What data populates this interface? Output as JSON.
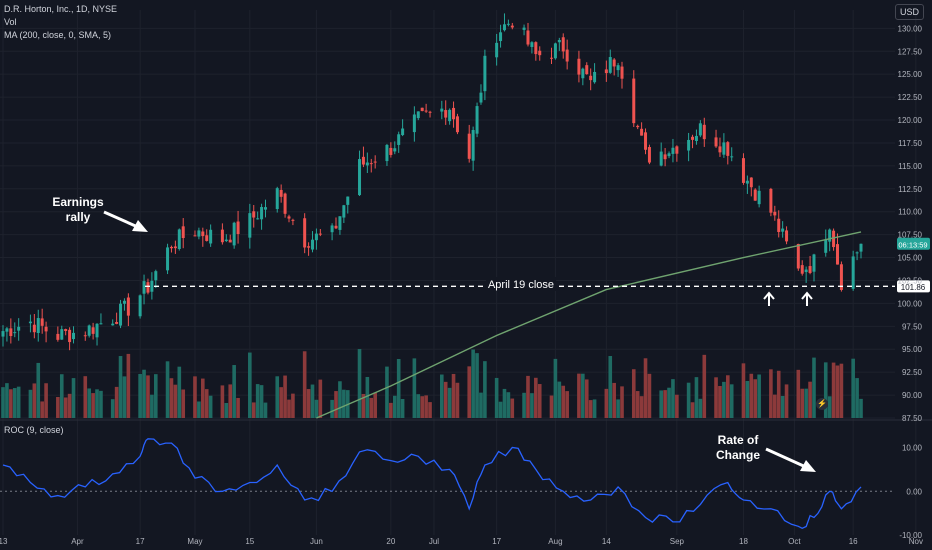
{
  "header": {
    "symbol_line": "D.R. Horton, Inc., 1D, NYSE",
    "volume_label": "Vol",
    "ma_label": "MA (200, close, 0, SMA, 5)",
    "roc_label": "ROC (9, close)",
    "currency": "USD"
  },
  "colors": {
    "background": "#131722",
    "up": "#26a69a",
    "down": "#ef5350",
    "vol_up": "#1f6b63",
    "vol_down": "#8c3a3b",
    "ma": "#6fa36f",
    "roc": "#2962ff",
    "grid": "#1e222d",
    "text": "#d1d4dc"
  },
  "chart_data": [
    {
      "type": "candlestick",
      "title": "D.R. Horton, Inc., 1D, NYSE",
      "ylim": [
        87.5,
        132
      ],
      "y_ticks": [
        "87.50",
        "90.00",
        "92.50",
        "95.00",
        "97.50",
        "100.00",
        "102.50",
        "105.00",
        "107.50",
        "110.00",
        "112.50",
        "115.00",
        "117.50",
        "120.00",
        "122.50",
        "125.00",
        "127.50",
        "130.00"
      ],
      "x_ticks": [
        "13",
        "Apr",
        "17",
        "May",
        "15",
        "Jun",
        "20",
        "Jul",
        "17",
        "Aug",
        "14",
        "Sep",
        "18",
        "Oct",
        "16",
        "Nov"
      ],
      "price_levels": [
        {
          "label": "April 19 close",
          "value": 101.86,
          "tag": "101.86"
        },
        {
          "label": "last",
          "value": 106.5,
          "tag": "06:13:59"
        }
      ],
      "close_path": [
        {
          "x": "Mar 13",
          "close": 97.0
        },
        {
          "x": "Mar 20",
          "close": 98.0
        },
        {
          "x": "Mar 27",
          "close": 96.5
        },
        {
          "x": "Apr 3",
          "close": 97.0
        },
        {
          "x": "Apr 10",
          "close": 98.5
        },
        {
          "x": "Apr 14",
          "close": 99.5
        },
        {
          "x": "Apr 17",
          "close": 101.0
        },
        {
          "x": "Apr 19",
          "close": 101.86
        },
        {
          "x": "Apr 25",
          "close": 106.5
        },
        {
          "x": "May 1",
          "close": 108.0
        },
        {
          "x": "May 8",
          "close": 107.0
        },
        {
          "x": "May 15",
          "close": 109.0
        },
        {
          "x": "May 22",
          "close": 112.0
        },
        {
          "x": "May 29",
          "close": 107.0
        },
        {
          "x": "Jun 5",
          "close": 107.5
        },
        {
          "x": "Jun 12",
          "close": 115.0
        },
        {
          "x": "Jun 20",
          "close": 117.0
        },
        {
          "x": "Jun 27",
          "close": 120.0
        },
        {
          "x": "Jul 5",
          "close": 121.5
        },
        {
          "x": "Jul 10",
          "close": 116.0
        },
        {
          "x": "Jul 14",
          "close": 126.0
        },
        {
          "x": "Jul 17",
          "close": 129.5
        },
        {
          "x": "Jul 21",
          "close": 131.0
        },
        {
          "x": "Jul 27",
          "close": 127.0
        },
        {
          "x": "Aug 3",
          "close": 128.0
        },
        {
          "x": "Aug 10",
          "close": 124.0
        },
        {
          "x": "Aug 17",
          "close": 127.0
        },
        {
          "x": "Aug 24",
          "close": 116.0
        },
        {
          "x": "Aug 31",
          "close": 117.0
        },
        {
          "x": "Sep 7",
          "close": 119.0
        },
        {
          "x": "Sep 14",
          "close": 117.0
        },
        {
          "x": "Sep 18",
          "close": 114.0
        },
        {
          "x": "Sep 25",
          "close": 110.0
        },
        {
          "x": "Oct 2",
          "close": 103.5
        },
        {
          "x": "Oct 6",
          "close": 104.5
        },
        {
          "x": "Oct 10",
          "close": 109.0
        },
        {
          "x": "Oct 13",
          "close": 102.5
        },
        {
          "x": "Oct 18",
          "close": 106.5
        }
      ],
      "series": [
        {
          "name": "MA (200, close, 0, SMA, 5)",
          "points": [
            {
              "x": "Jun 1",
              "y": 87.5
            },
            {
              "x": "Jun 20",
              "y": 91.0
            },
            {
              "x": "Jul 17",
              "y": 96.5
            },
            {
              "x": "Aug 14",
              "y": 101.5
            },
            {
              "x": "Sep 18",
              "y": 105.0
            },
            {
              "x": "Oct 18",
              "y": 107.8
            }
          ]
        }
      ],
      "annotations": [
        "Earnings rally",
        "April 19 close"
      ]
    },
    {
      "type": "line",
      "title": "ROC (9, close)",
      "ylim": [
        -10,
        14
      ],
      "y_ticks": [
        "10.00",
        "0.00",
        "-10.00"
      ],
      "series": [
        {
          "name": "ROC (9, close)",
          "points": [
            {
              "x": "Mar 13",
              "y": 6
            },
            {
              "x": "Mar 20",
              "y": 2
            },
            {
              "x": "Mar 27",
              "y": -1
            },
            {
              "x": "Apr 3",
              "y": 1
            },
            {
              "x": "Apr 10",
              "y": 4
            },
            {
              "x": "Apr 17",
              "y": 8
            },
            {
              "x": "Apr 19",
              "y": 12
            },
            {
              "x": "Apr 25",
              "y": 11
            },
            {
              "x": "May 1",
              "y": 3
            },
            {
              "x": "May 8",
              "y": 0
            },
            {
              "x": "May 15",
              "y": 2
            },
            {
              "x": "May 22",
              "y": 6
            },
            {
              "x": "May 29",
              "y": -2
            },
            {
              "x": "Jun 5",
              "y": 0
            },
            {
              "x": "Jun 12",
              "y": 9
            },
            {
              "x": "Jun 20",
              "y": 7
            },
            {
              "x": "Jun 27",
              "y": 8
            },
            {
              "x": "Jul 5",
              "y": 5
            },
            {
              "x": "Jul 10",
              "y": -4
            },
            {
              "x": "Jul 14",
              "y": 6
            },
            {
              "x": "Jul 21",
              "y": 10
            },
            {
              "x": "Jul 27",
              "y": 5
            },
            {
              "x": "Aug 3",
              "y": 0
            },
            {
              "x": "Aug 10",
              "y": -2
            },
            {
              "x": "Aug 17",
              "y": 1
            },
            {
              "x": "Aug 24",
              "y": -6
            },
            {
              "x": "Aug 31",
              "y": -7
            },
            {
              "x": "Sep 7",
              "y": -3
            },
            {
              "x": "Sep 14",
              "y": 2
            },
            {
              "x": "Sep 18",
              "y": -2
            },
            {
              "x": "Sep 25",
              "y": -4
            },
            {
              "x": "Oct 2",
              "y": -8
            },
            {
              "x": "Oct 6",
              "y": -6
            },
            {
              "x": "Oct 10",
              "y": 0
            },
            {
              "x": "Oct 13",
              "y": -4
            },
            {
              "x": "Oct 18",
              "y": 1
            }
          ]
        }
      ],
      "annotations": [
        "Rate of Change"
      ]
    }
  ]
}
